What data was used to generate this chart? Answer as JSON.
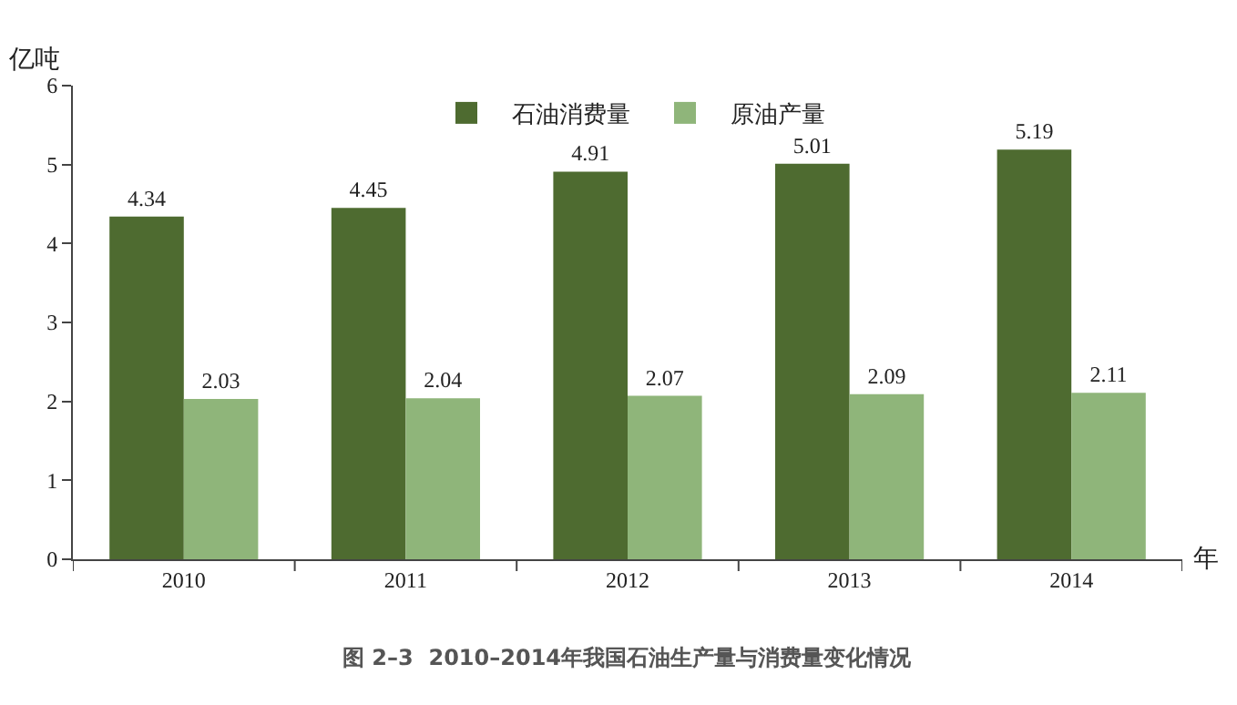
{
  "chart_data": {
    "type": "bar",
    "title": "图 2–3  2010–2014年我国石油生产量与消费量变化情况",
    "ylabel": "亿吨",
    "xlabel": "年",
    "categories": [
      "2010",
      "2011",
      "2012",
      "2013",
      "2014"
    ],
    "series": [
      {
        "name": "石油消费量",
        "color": "#4e6b30",
        "values": [
          4.34,
          4.45,
          4.91,
          5.01,
          5.19
        ]
      },
      {
        "name": "原油产量",
        "color": "#8fb57a",
        "values": [
          2.03,
          2.04,
          2.07,
          2.09,
          2.11
        ]
      }
    ],
    "ylim": [
      0,
      6
    ],
    "yticks": [
      0,
      1,
      2,
      3,
      4,
      5,
      6
    ],
    "data_labels": true,
    "legend": "top"
  }
}
